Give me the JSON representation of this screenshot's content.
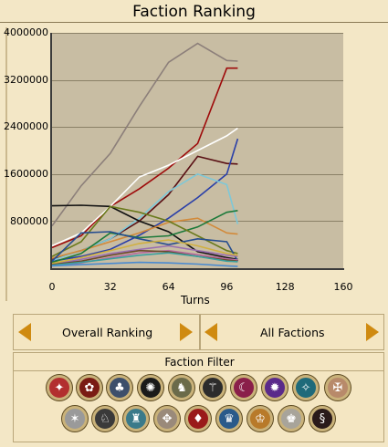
{
  "header": {
    "title": "Faction Ranking"
  },
  "chart_data": {
    "type": "line",
    "xlabel": "Turns",
    "ylabel": "",
    "xlim": [
      0,
      160
    ],
    "ylim": [
      0,
      4000000
    ],
    "x_ticks": [
      "0",
      "32",
      "64",
      "96",
      "128",
      "160"
    ],
    "y_ticks": [
      "4000000",
      "3200000",
      "2400000",
      "1600000",
      "800000"
    ],
    "grid": true,
    "series": [
      {
        "color": "#8c7f7a",
        "x": [
          0,
          16,
          32,
          48,
          64,
          80,
          96,
          102
        ],
        "y": [
          720000,
          1400000,
          1950000,
          2750000,
          3500000,
          3820000,
          3530000,
          3520000
        ]
      },
      {
        "color": "#9e0a0a",
        "x": [
          0,
          16,
          32,
          48,
          64,
          80,
          96,
          102
        ],
        "y": [
          350000,
          550000,
          1050000,
          1350000,
          1700000,
          2120000,
          3400000,
          3400000
        ]
      },
      {
        "color": "#ffffff",
        "x": [
          0,
          16,
          32,
          48,
          64,
          80,
          96,
          102
        ],
        "y": [
          380000,
          600000,
          1050000,
          1550000,
          1750000,
          2000000,
          2250000,
          2380000
        ]
      },
      {
        "color": "#5a1014",
        "x": [
          0,
          16,
          32,
          48,
          64,
          80,
          96,
          102
        ],
        "y": [
          150000,
          300000,
          500000,
          800000,
          1250000,
          1900000,
          1780000,
          1770000
        ]
      },
      {
        "color": "#2a3fa8",
        "x": [
          0,
          16,
          32,
          48,
          64,
          80,
          96,
          102
        ],
        "y": [
          120000,
          200000,
          320000,
          560000,
          850000,
          1200000,
          1600000,
          2200000
        ]
      },
      {
        "color": "#7ec8d8",
        "x": [
          0,
          16,
          32,
          48,
          64,
          80,
          96,
          102
        ],
        "y": [
          130000,
          300000,
          500000,
          850000,
          1300000,
          1600000,
          1420000,
          750000
        ]
      },
      {
        "color": "#111111",
        "x": [
          0,
          16,
          32,
          48,
          64,
          80,
          96,
          102
        ],
        "y": [
          1060000,
          1070000,
          1050000,
          800000,
          620000,
          280000,
          180000,
          150000
        ]
      },
      {
        "color": "#d28a3a",
        "x": [
          0,
          16,
          32,
          48,
          64,
          80,
          96,
          102
        ],
        "y": [
          170000,
          300000,
          450000,
          600000,
          780000,
          850000,
          600000,
          580000
        ]
      },
      {
        "color": "#1c7a3a",
        "x": [
          0,
          16,
          32,
          48,
          64,
          80,
          96,
          102
        ],
        "y": [
          100000,
          250000,
          600000,
          520000,
          550000,
          700000,
          950000,
          980000
        ]
      },
      {
        "color": "#6a7a1c",
        "x": [
          0,
          16,
          32,
          48,
          64,
          80,
          96,
          102
        ],
        "y": [
          200000,
          450000,
          1050000,
          950000,
          800000,
          550000,
          300000,
          250000
        ]
      },
      {
        "color": "#264d8f",
        "x": [
          0,
          16,
          32,
          48,
          64,
          80,
          96,
          102
        ],
        "y": [
          120000,
          600000,
          620000,
          500000,
          400000,
          500000,
          450000,
          120000
        ]
      },
      {
        "color": "#9a6fb0",
        "x": [
          0,
          16,
          32,
          48,
          64,
          80,
          96,
          102
        ],
        "y": [
          60000,
          150000,
          250000,
          320000,
          380000,
          300000,
          220000,
          200000
        ]
      },
      {
        "color": "#b76a9e",
        "x": [
          0,
          16,
          32,
          48,
          64,
          80,
          96,
          102
        ],
        "y": [
          40000,
          90000,
          180000,
          260000,
          300000,
          230000,
          160000,
          140000
        ]
      },
      {
        "color": "#d0b040",
        "x": [
          0,
          16,
          32,
          48,
          64,
          80,
          96,
          102
        ],
        "y": [
          80000,
          180000,
          300000,
          420000,
          480000,
          380000,
          250000,
          220000
        ]
      },
      {
        "color": "#6a4a2a",
        "x": [
          0,
          16,
          32,
          48,
          64,
          80,
          96,
          102
        ],
        "y": [
          60000,
          120000,
          220000,
          300000,
          280000,
          200000,
          140000,
          120000
        ]
      },
      {
        "color": "#3aa0a0",
        "x": [
          0,
          16,
          32,
          48,
          64,
          80,
          96,
          102
        ],
        "y": [
          50000,
          100000,
          160000,
          220000,
          260000,
          200000,
          120000,
          110000
        ]
      },
      {
        "color": "#4a8ad0",
        "x": [
          0,
          16,
          32,
          48,
          64,
          80,
          96,
          102
        ],
        "y": [
          40000,
          60000,
          80000,
          100000,
          90000,
          70000,
          40000,
          30000
        ]
      }
    ]
  },
  "controls": {
    "ranking_label": "Overall Ranking",
    "factions_label": "All Factions"
  },
  "filter": {
    "title": "Faction Filter",
    "emblems": [
      {
        "name": "faction-1",
        "color": "#b22f2f",
        "glyph": "✦"
      },
      {
        "name": "faction-2",
        "color": "#7a1b14",
        "glyph": "✿"
      },
      {
        "name": "faction-3",
        "color": "#3d4f6b",
        "glyph": "♣"
      },
      {
        "name": "faction-4",
        "color": "#1a1a1a",
        "glyph": "✺"
      },
      {
        "name": "faction-5",
        "color": "#6b6b4a",
        "glyph": "♞"
      },
      {
        "name": "faction-6",
        "color": "#2c2c2c",
        "glyph": "⚚"
      },
      {
        "name": "faction-7",
        "color": "#8a1f4a",
        "glyph": "☾"
      },
      {
        "name": "faction-8",
        "color": "#5a2a8a",
        "glyph": "✹"
      },
      {
        "name": "faction-9",
        "color": "#1f6a7a",
        "glyph": "✧"
      },
      {
        "name": "faction-10",
        "color": "#b88a6a",
        "glyph": "✠"
      },
      {
        "name": "faction-11",
        "color": "#9a9a9a",
        "glyph": "✶"
      },
      {
        "name": "faction-12",
        "color": "#3a3a3a",
        "glyph": "♘"
      },
      {
        "name": "faction-13",
        "color": "#3a7a8a",
        "glyph": "♜"
      },
      {
        "name": "faction-14",
        "color": "#9a8a7a",
        "glyph": "✥"
      },
      {
        "name": "faction-15",
        "color": "#9a1a1a",
        "glyph": "♦"
      },
      {
        "name": "faction-16",
        "color": "#2a5a8a",
        "glyph": "♛"
      },
      {
        "name": "faction-17",
        "color": "#b87a2a",
        "glyph": "♔"
      },
      {
        "name": "faction-18",
        "color": "#a8a49a",
        "glyph": "♚"
      },
      {
        "name": "faction-19",
        "color": "#2a1a1a",
        "glyph": "§"
      }
    ]
  }
}
